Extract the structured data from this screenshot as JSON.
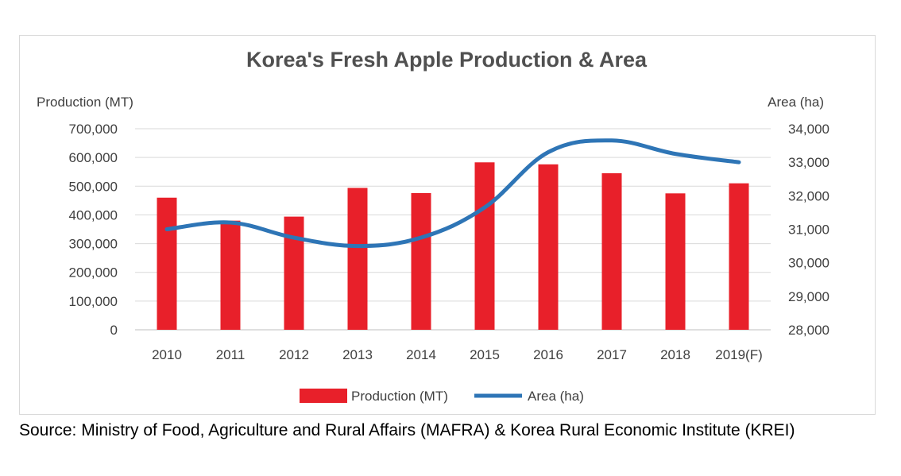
{
  "chart_data": {
    "type": "bar",
    "title": "Korea's Fresh Apple Production & Area",
    "categories": [
      "2010",
      "2011",
      "2012",
      "2013",
      "2014",
      "2015",
      "2016",
      "2017",
      "2018",
      "2019(F)"
    ],
    "series": [
      {
        "name": "Production (MT)",
        "type": "bar",
        "axis": "left",
        "color": "#e8202a",
        "values": [
          460000,
          380000,
          394000,
          494000,
          476000,
          583000,
          576000,
          545000,
          475000,
          510000
        ]
      },
      {
        "name": "Area (ha)",
        "type": "line",
        "axis": "right",
        "color": "#2e75b6",
        "values": [
          31000,
          31200,
          30750,
          30500,
          30750,
          31650,
          33300,
          33650,
          33250,
          33000
        ]
      }
    ],
    "y_left": {
      "label": "Production (MT)",
      "ylim": [
        0,
        700000
      ],
      "ticks": [
        0,
        100000,
        200000,
        300000,
        400000,
        500000,
        600000,
        700000
      ],
      "tick_labels": [
        "0",
        "100,000",
        "200,000",
        "300,000",
        "400,000",
        "500,000",
        "600,000",
        "700,000"
      ]
    },
    "y_right": {
      "label": "Area (ha)",
      "ylim": [
        28000,
        34000
      ],
      "ticks": [
        28000,
        29000,
        30000,
        31000,
        32000,
        33000,
        34000
      ],
      "tick_labels": [
        "28,000",
        "29,000",
        "30,000",
        "31,000",
        "32,000",
        "33,000",
        "34,000"
      ]
    },
    "grid": true,
    "legend_position": "bottom"
  },
  "source": "Source: Ministry of Food, Agriculture and Rural Affairs (MAFRA) & Korea Rural Economic Institute (KREI)"
}
